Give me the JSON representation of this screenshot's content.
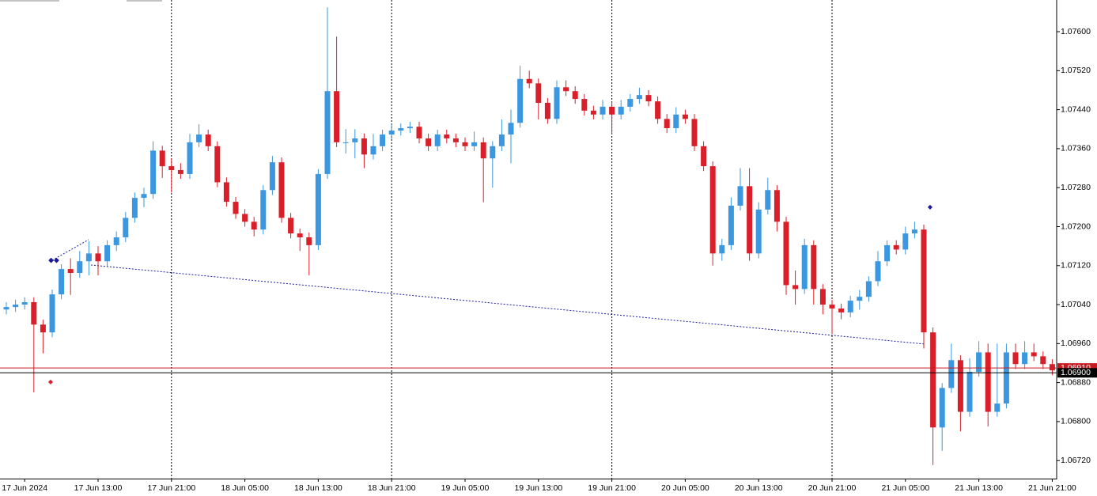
{
  "chart_data": {
    "type": "candlestick",
    "up_color": "#3a97e0",
    "down_color": "#d9202a",
    "ylim": [
      1.06683,
      1.07665
    ],
    "yticks": [
      {
        "value": 1.0672,
        "label": "1.06720"
      },
      {
        "value": 1.068,
        "label": "1.06800"
      },
      {
        "value": 1.0688,
        "label": "1.06880"
      },
      {
        "value": 1.0696,
        "label": "1.06960"
      },
      {
        "value": 1.0704,
        "label": "1.07040"
      },
      {
        "value": 1.0712,
        "label": "1.07120"
      },
      {
        "value": 1.072,
        "label": "1.07200"
      },
      {
        "value": 1.0728,
        "label": "1.07280"
      },
      {
        "value": 1.0736,
        "label": "1.07360"
      },
      {
        "value": 1.0744,
        "label": "1.07440"
      },
      {
        "value": 1.0752,
        "label": "1.07520"
      },
      {
        "value": 1.076,
        "label": "1.07600"
      }
    ],
    "price_lines": [
      {
        "value": 1.0691,
        "label": "1.06910",
        "color": "#c8191e"
      },
      {
        "value": 1.069,
        "label": "1.06900",
        "color": "#000000"
      }
    ],
    "categories": [
      null,
      null,
      "17 Jun 2024",
      null,
      null,
      null,
      null,
      null,
      null,
      null,
      "17 Jun 13:00",
      null,
      null,
      null,
      null,
      null,
      null,
      null,
      "17 Jun 21:00",
      null,
      null,
      null,
      null,
      null,
      null,
      null,
      "18 Jun 05:00",
      null,
      null,
      null,
      null,
      null,
      null,
      null,
      "18 Jun 13:00",
      null,
      null,
      null,
      null,
      null,
      null,
      null,
      "18 Jun 21:00",
      null,
      null,
      null,
      null,
      null,
      null,
      null,
      "19 Jun 05:00",
      null,
      null,
      null,
      null,
      null,
      null,
      null,
      "19 Jun 13:00",
      null,
      null,
      null,
      null,
      null,
      null,
      null,
      "19 Jun 21:00",
      null,
      null,
      null,
      null,
      null,
      null,
      null,
      "20 Jun 05:00",
      null,
      null,
      null,
      null,
      null,
      null,
      null,
      "20 Jun 13:00",
      null,
      null,
      null,
      null,
      null,
      null,
      null,
      "20 Jun 21:00",
      null,
      null,
      null,
      null,
      null,
      null,
      null,
      "21 Jun 05:00",
      null,
      null,
      null,
      null,
      null,
      null,
      null,
      "21 Jun 13:00",
      null,
      null,
      null,
      null,
      null,
      null,
      null,
      "21 Jun 21:00"
    ],
    "open": [
      1.0703,
      1.07035,
      1.0704,
      1.07045,
      1.06999,
      1.06983,
      1.07061,
      1.07113,
      1.07105,
      1.07129,
      1.07145,
      1.07129,
      1.07162,
      1.07178,
      1.07218,
      1.07259,
      1.07267,
      1.07356,
      1.07324,
      1.07316,
      1.07308,
      1.07373,
      1.07389,
      1.07365,
      1.07291,
      1.07251,
      1.07226,
      1.0721,
      1.07194,
      1.07275,
      1.07332,
      1.07218,
      1.07186,
      1.07178,
      1.07162,
      1.07308,
      1.07478,
      1.07373,
      1.07373,
      1.07381,
      1.07348,
      1.07365,
      1.07389,
      1.07397,
      1.07402,
      1.07405,
      1.07381,
      1.07365,
      1.07389,
      1.07381,
      1.07373,
      1.07365,
      1.07373,
      1.0734,
      1.07365,
      1.07389,
      1.07413,
      1.07503,
      1.07494,
      1.07454,
      1.07421,
      1.07486,
      1.07478,
      1.07462,
      1.07438,
      1.0743,
      1.07446,
      1.0743,
      1.07446,
      1.07462,
      1.0747,
      1.07457,
      1.07421,
      1.07402,
      1.0743,
      1.07421,
      1.07365,
      1.07324,
      1.07145,
      1.07162,
      1.07243,
      1.07283,
      1.07145,
      1.07235,
      1.07275,
      1.0721,
      1.0708,
      1.07072,
      1.07162,
      1.07072,
      1.0704,
      1.07032,
      1.07024,
      1.07048,
      1.07056,
      1.07088,
      1.07129,
      1.07162,
      1.07153,
      1.07186,
      1.07194,
      1.06983,
      1.06788,
      1.06869,
      1.06926,
      1.0682,
      1.06902,
      1.06942,
      1.0682,
      1.06837,
      1.06942,
      1.06918,
      1.06942,
      1.06934,
      1.06918
    ],
    "high": [
      1.07045,
      1.0705,
      1.07055,
      1.07055,
      1.07009,
      1.07071,
      1.07123,
      1.07135,
      1.0715,
      1.0717,
      1.0716,
      1.07172,
      1.0719,
      1.0723,
      1.0727,
      1.0728,
      1.07375,
      1.07366,
      1.0734,
      1.0733,
      1.0739,
      1.0741,
      1.07399,
      1.07375,
      1.07301,
      1.07261,
      1.07236,
      1.0722,
      1.07285,
      1.07345,
      1.07342,
      1.07228,
      1.07196,
      1.07188,
      1.07318,
      1.0765,
      1.0759,
      1.074,
      1.074,
      1.07391,
      1.0739,
      1.07399,
      1.0741,
      1.07412,
      1.07415,
      1.07415,
      1.07391,
      1.07399,
      1.07399,
      1.07391,
      1.07383,
      1.07395,
      1.07383,
      1.07375,
      1.0742,
      1.0744,
      1.0753,
      1.0752,
      1.07504,
      1.07464,
      1.075,
      1.075,
      1.07488,
      1.07472,
      1.07448,
      1.0746,
      1.07456,
      1.0746,
      1.07472,
      1.07485,
      1.0748,
      1.07467,
      1.07431,
      1.07445,
      1.0744,
      1.07431,
      1.07375,
      1.07334,
      1.07175,
      1.0726,
      1.0732,
      1.0732,
      1.0725,
      1.073,
      1.07285,
      1.0722,
      1.0711,
      1.07175,
      1.07172,
      1.07082,
      1.0705,
      1.07042,
      1.07058,
      1.0707,
      1.07098,
      1.0715,
      1.07172,
      1.07172,
      1.072,
      1.0721,
      1.07204,
      1.06993,
      1.06879,
      1.0696,
      1.06936,
      1.0693,
      1.06965,
      1.0696,
      1.0696,
      1.0696,
      1.0696,
      1.06965,
      1.0696,
      1.06944,
      1.06928
    ],
    "low": [
      1.0702,
      1.07025,
      1.0703,
      1.0686,
      1.0694,
      1.06973,
      1.07051,
      1.0706,
      1.07095,
      1.071,
      1.071,
      1.07119,
      1.0715,
      1.07168,
      1.07208,
      1.0724,
      1.07257,
      1.073,
      1.0727,
      1.07298,
      1.07298,
      1.07363,
      1.07355,
      1.07281,
      1.07241,
      1.07216,
      1.072,
      1.0718,
      1.07184,
      1.07265,
      1.07208,
      1.07176,
      1.0715,
      1.071,
      1.07152,
      1.07298,
      1.07363,
      1.0735,
      1.0734,
      1.0732,
      1.07338,
      1.07355,
      1.07379,
      1.07387,
      1.07392,
      1.07371,
      1.07355,
      1.07355,
      1.07371,
      1.07363,
      1.07355,
      1.07355,
      1.0725,
      1.0728,
      1.07355,
      1.0733,
      1.07403,
      1.07484,
      1.0742,
      1.07411,
      1.07411,
      1.07468,
      1.07452,
      1.07428,
      1.0742,
      1.0742,
      1.0739,
      1.0742,
      1.07436,
      1.07452,
      1.07447,
      1.07411,
      1.07392,
      1.07392,
      1.07411,
      1.07355,
      1.07314,
      1.0712,
      1.0713,
      1.07152,
      1.07233,
      1.0713,
      1.07135,
      1.07225,
      1.0719,
      1.0706,
      1.0704,
      1.07062,
      1.0704,
      1.0702,
      1.0698,
      1.0701,
      1.07014,
      1.0703,
      1.07046,
      1.07078,
      1.07119,
      1.07143,
      1.07143,
      1.07176,
      1.0695,
      1.06711,
      1.0674,
      1.06859,
      1.0678,
      1.0681,
      1.06892,
      1.0679,
      1.0681,
      1.06827,
      1.06908,
      1.06908,
      1.06924,
      1.06908,
      1.06895
    ],
    "close": [
      1.07035,
      1.0704,
      1.07045,
      1.06999,
      1.06983,
      1.07061,
      1.07113,
      1.07105,
      1.07129,
      1.07145,
      1.07129,
      1.07162,
      1.07178,
      1.07218,
      1.07259,
      1.07267,
      1.07356,
      1.07324,
      1.07316,
      1.07308,
      1.07373,
      1.07389,
      1.07365,
      1.07291,
      1.07251,
      1.07226,
      1.0721,
      1.07194,
      1.07275,
      1.07332,
      1.07218,
      1.07186,
      1.07178,
      1.07162,
      1.07308,
      1.07478,
      1.07373,
      1.07373,
      1.07381,
      1.07348,
      1.07365,
      1.07389,
      1.07397,
      1.07402,
      1.07405,
      1.07381,
      1.07365,
      1.07389,
      1.07381,
      1.07373,
      1.07365,
      1.07373,
      1.0734,
      1.07365,
      1.07389,
      1.07413,
      1.07503,
      1.07494,
      1.07454,
      1.07421,
      1.07486,
      1.07478,
      1.07462,
      1.07438,
      1.0743,
      1.07446,
      1.0743,
      1.07446,
      1.07462,
      1.0747,
      1.07457,
      1.07421,
      1.07402,
      1.0743,
      1.07421,
      1.07365,
      1.07324,
      1.07145,
      1.07162,
      1.07243,
      1.07283,
      1.07145,
      1.07235,
      1.07275,
      1.0721,
      1.0708,
      1.07072,
      1.07162,
      1.07072,
      1.0704,
      1.07032,
      1.07024,
      1.07048,
      1.07056,
      1.07088,
      1.07129,
      1.07162,
      1.07153,
      1.07186,
      1.07194,
      1.06983,
      1.06788,
      1.06869,
      1.06926,
      1.0682,
      1.06902,
      1.06942,
      1.0682,
      1.06837,
      1.06942,
      1.06918,
      1.06942,
      1.06934,
      1.06918,
      1.06905
    ]
  }
}
